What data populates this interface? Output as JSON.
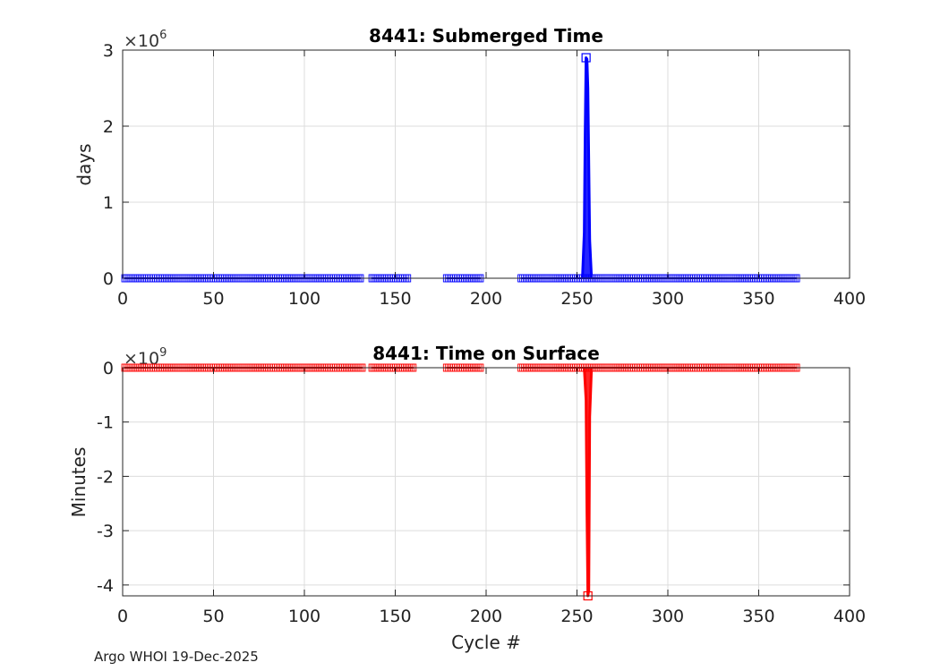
{
  "footer": "Argo WHOI 19-Dec-2025",
  "chart_data": [
    {
      "type": "scatter",
      "title": "8441: Submerged Time",
      "xlabel": "",
      "ylabel": "days",
      "exponent_label": "×10",
      "exponent": "6",
      "xlim": [
        0,
        400
      ],
      "ylim": [
        0,
        3
      ],
      "xticks": [
        0,
        50,
        100,
        150,
        200,
        250,
        300,
        350,
        400
      ],
      "yticks": [
        0,
        1,
        2,
        3
      ],
      "grid": true,
      "legend": "none",
      "color": "#0000ff",
      "line_segments": [
        [
          1,
          131
        ],
        [
          137,
          157
        ],
        [
          178,
          197
        ],
        [
          219,
          253
        ],
        [
          253,
          258
        ],
        [
          258,
          371
        ]
      ],
      "gaps": [
        [
          132,
          136
        ],
        [
          158,
          177
        ],
        [
          198,
          218
        ]
      ],
      "baseline_value": 0.0,
      "spike": {
        "x": [
          253,
          254,
          254.5,
          255,
          255.5,
          256,
          256.5,
          257,
          258
        ],
        "y": [
          0.0,
          0.6,
          1.9,
          2.9,
          2.88,
          2.5,
          1.5,
          0.5,
          0.0
        ]
      },
      "peak_marker": {
        "x": 255,
        "y": 2.9
      }
    },
    {
      "type": "scatter",
      "title": "8441: Time on Surface",
      "xlabel": "Cycle #",
      "ylabel": "Minutes",
      "exponent_label": "×10",
      "exponent": "9",
      "xlim": [
        0,
        400
      ],
      "ylim": [
        -4.2,
        0
      ],
      "xticks": [
        0,
        50,
        100,
        150,
        200,
        250,
        300,
        350,
        400
      ],
      "yticks": [
        0,
        -1,
        -2,
        -3,
        -4
      ],
      "grid": true,
      "legend": "none",
      "color": "#ff0000",
      "line_segments": [
        [
          1,
          132
        ],
        [
          137,
          160
        ],
        [
          178,
          197
        ],
        [
          219,
          371
        ]
      ],
      "gaps": [
        [
          133,
          136
        ],
        [
          161,
          177
        ],
        [
          198,
          218
        ]
      ],
      "baseline_value": 0.0,
      "spike": {
        "x": [
          254,
          255,
          255.5,
          256,
          256.5,
          257,
          258
        ],
        "y": [
          0.0,
          -0.6,
          -2.7,
          -4.2,
          -4.1,
          -0.9,
          0.0
        ]
      },
      "peak_marker": {
        "x": 256,
        "y": -4.2
      }
    }
  ]
}
